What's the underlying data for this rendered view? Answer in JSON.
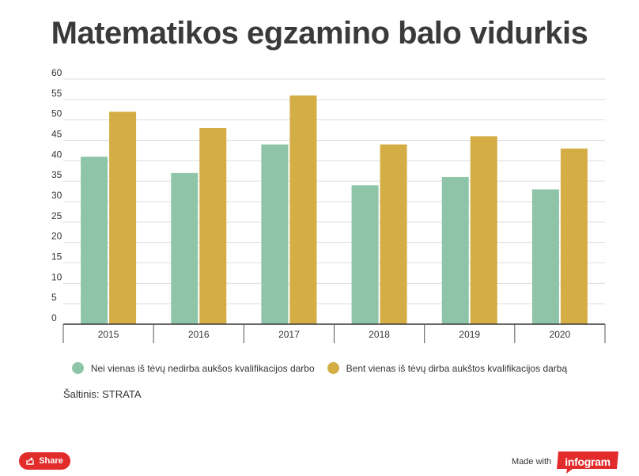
{
  "chart_data": {
    "type": "bar",
    "title": "Matematikos egzamino balo vidurkis",
    "categories": [
      "2015",
      "2016",
      "2017",
      "2018",
      "2019",
      "2020"
    ],
    "series": [
      {
        "name": "Nei vienas iš tėvų nedirba aukšos kvalifikacijos darbo",
        "color": "#8ec5a8",
        "values": [
          41,
          37,
          44,
          34,
          36,
          33
        ]
      },
      {
        "name": "Bent vienas iš tėvų dirba aukštos kvalifikacijos darbą",
        "color": "#d4ad45",
        "values": [
          52,
          48,
          56,
          44,
          46,
          43
        ]
      }
    ],
    "ylim": [
      0,
      60
    ],
    "yticks": [
      0,
      5,
      10,
      15,
      20,
      25,
      30,
      35,
      40,
      45,
      50,
      55,
      60
    ],
    "grid": true,
    "legend_position": "bottom"
  },
  "source": "Šaltinis: STRATA",
  "footer": {
    "share_label": "Share",
    "made_with": "Made with",
    "brand": "infogram"
  },
  "colors": {
    "share": "#e22b2b",
    "brand": "#e22b2b"
  }
}
